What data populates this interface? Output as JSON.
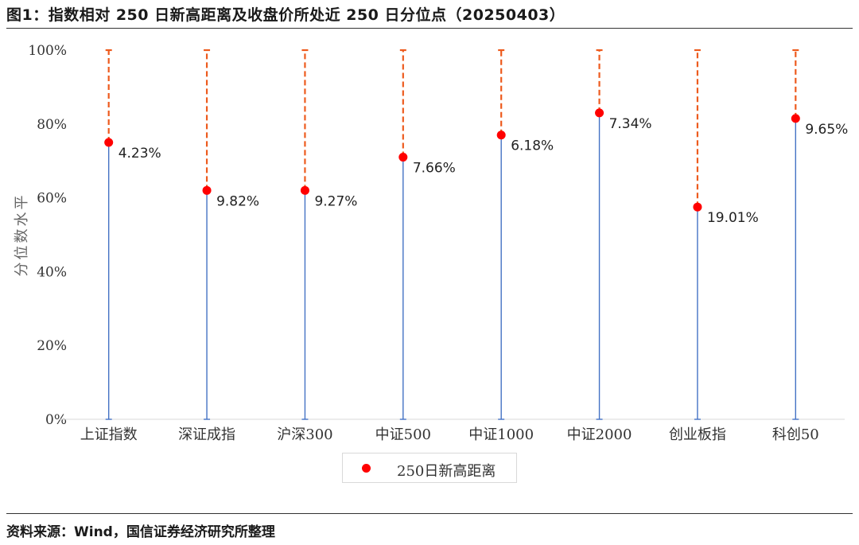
{
  "title": "图1：指数相对 250 日新高距离及收盘价所处近 250 日分位点（20250403）",
  "source": "资料来源：Wind，国信证券经济研究所整理",
  "chart_data": {
    "type": "scatter",
    "ylabel": "分位数水平",
    "ylim": [
      0,
      100
    ],
    "y_ticks": [
      "0%",
      "20%",
      "40%",
      "60%",
      "80%",
      "100%"
    ],
    "categories": [
      "上证指数",
      "深证成指",
      "沪深300",
      "中证500",
      "中证1000",
      "中证2000",
      "创业板指",
      "科创50"
    ],
    "series": [
      {
        "name": "250日新高距离",
        "percentile": [
          75,
          62,
          62,
          71,
          77,
          83,
          57.5,
          81.5
        ],
        "labels": [
          "4.23%",
          "9.82%",
          "9.27%",
          "7.66%",
          "6.18%",
          "7.34%",
          "19.01%",
          "9.65%"
        ]
      }
    ],
    "legend_position": "bottom-center",
    "grid": false,
    "colors": {
      "point": "#ff0000",
      "lower_line": "#4472c4",
      "upper_dash": "#ed5b1e"
    }
  }
}
